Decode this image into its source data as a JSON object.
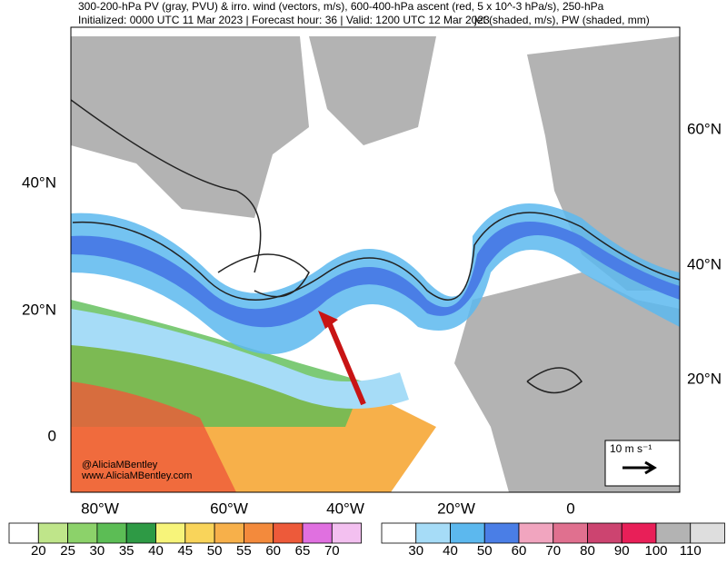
{
  "header": {
    "line1": "300-200-hPa PV (gray, PVU) & irro. wind (vectors, m/s), 600-400-hPa ascent (red, 5 x 10^-3 hPa/s), 250-hPa",
    "line2": "Initialized: 0000 UTC 11 Mar 2023 | Forecast hour: 36 | Valid: 1200 UTC 12 Mar 2023",
    "line2b": "jet (shaded, m/s), PW (shaded, mm)"
  },
  "map": {
    "lat_left": [
      "40°N",
      "20°N",
      "0"
    ],
    "lat_right": [
      "60°N",
      "40°N",
      "20°N"
    ],
    "lon_bottom": [
      "80°W",
      "60°W",
      "40°W",
      "20°W",
      "0"
    ],
    "credit": [
      "@AliciaMBentley",
      "www.AliciaMBentley.com"
    ],
    "vector_legend": "10 m s⁻¹"
  },
  "colorbars": [
    {
      "labels": [
        "20",
        "25",
        "30",
        "35",
        "40",
        "45",
        "50",
        "55",
        "60",
        "65",
        "70"
      ],
      "colors": [
        "#ffffff",
        "#bfe58a",
        "#8cd26a",
        "#5cbd55",
        "#2e9a45",
        "#f7f47a",
        "#f9d45a",
        "#f7b04a",
        "#f38a3c",
        "#ed5a3a",
        "#e070e0",
        "#f3c0f0"
      ]
    },
    {
      "labels": [
        "30",
        "40",
        "50",
        "60",
        "70",
        "80",
        "90",
        "100",
        "110"
      ],
      "colors": [
        "#ffffff",
        "#a6dcf7",
        "#5cb8ee",
        "#4a7ee6",
        "#f1a5bf",
        "#e0708f",
        "#cc4470",
        "#e81f58",
        "#b3b3b3",
        "#dedede"
      ]
    }
  ]
}
